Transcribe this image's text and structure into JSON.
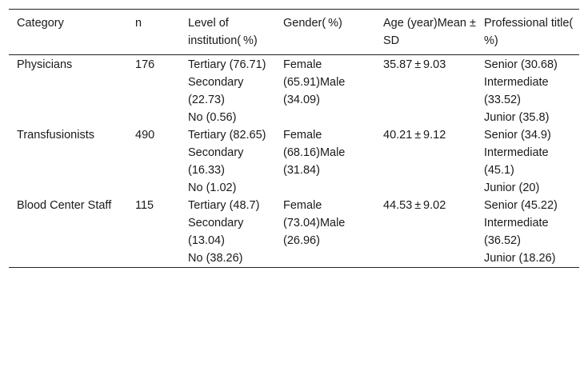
{
  "table": {
    "headers": {
      "category": "Category",
      "n": "n",
      "level": "Level of institution( %)",
      "gender": "Gender( %)",
      "age": "Age (year)Mean ± SD",
      "title": "Professional title( %)"
    },
    "rows": [
      {
        "category": "Physicians",
        "n": "176",
        "level": [
          "Tertiary (76.71)",
          "Secondary (22.73)",
          "No (0.56)"
        ],
        "gender": "Female (65.91)Male (34.09)",
        "age": "35.87 ± 9.03",
        "title": [
          "Senior (30.68)",
          "Intermediate (33.52)",
          "Junior (35.8)"
        ]
      },
      {
        "category": "Transfusionists",
        "n": "490",
        "level": [
          "Tertiary (82.65)",
          "Secondary (16.33)",
          "No (1.02)"
        ],
        "gender": "Female (68.16)Male (31.84)",
        "age": "40.21 ± 9.12",
        "title": [
          "Senior (34.9)",
          "Intermediate (45.1)",
          "Junior (20)"
        ]
      },
      {
        "category": "Blood Center Staff",
        "n": "115",
        "level": [
          "Tertiary (48.7)",
          "Secondary (13.04)",
          "No (38.26)"
        ],
        "gender": "Female (73.04)Male (26.96)",
        "age": "44.53 ± 9.02",
        "title": [
          "Senior (45.22)",
          "Intermediate (36.52)",
          "Junior (18.26)"
        ]
      }
    ]
  }
}
